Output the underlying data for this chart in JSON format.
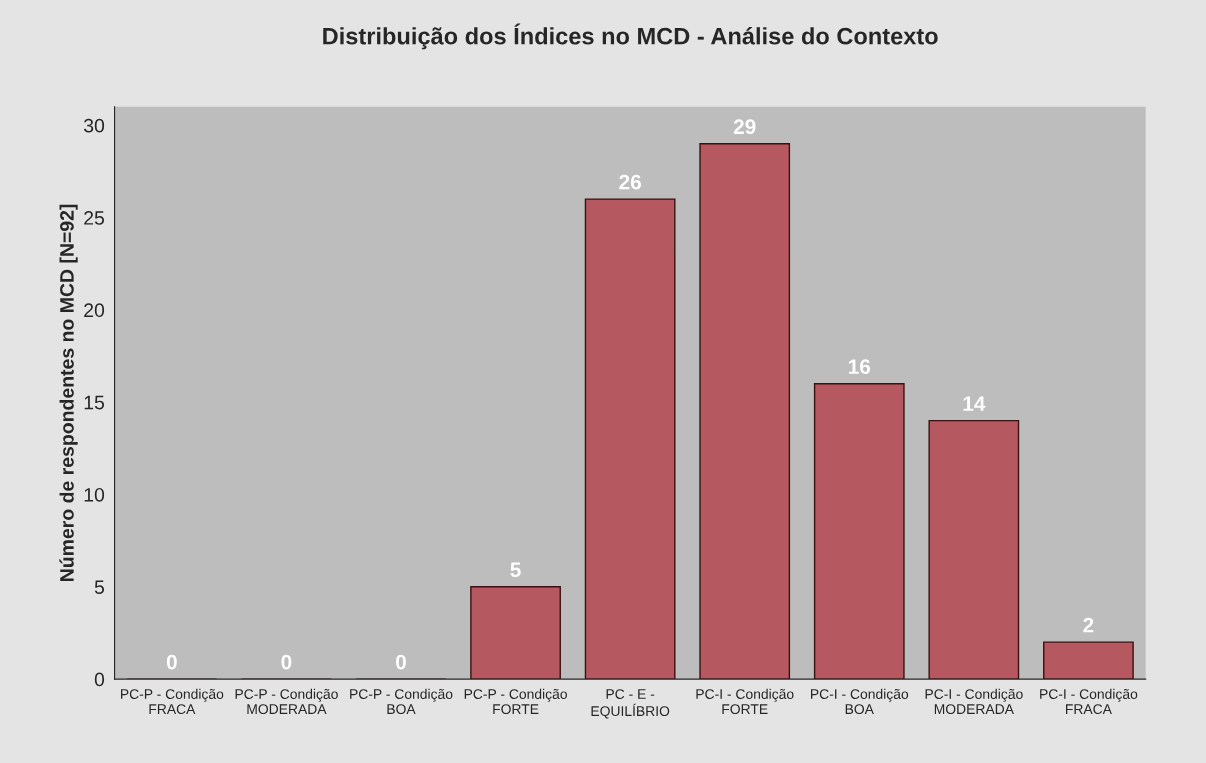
{
  "chart_data": {
    "type": "bar",
    "title": "Distribuição dos Índices no MCD - Análise do Contexto",
    "ylabel": "Número de respondentes no MCD [N=92]",
    "categories": [
      "PC-P - Condição\nFRACA",
      "PC-P - Condição\nMODERADA",
      "PC-P - Condição\nBOA",
      "PC-P - Condição\nFORTE",
      "PC - E -\nEQUILÍBRIO",
      "PC-I - Condição\nFORTE",
      "PC-I - Condição\nBOA",
      "PC-I - Condição\nMODERADA",
      "PC-I - Condição\nFRACA"
    ],
    "values": [
      0,
      0,
      0,
      5,
      26,
      29,
      16,
      14,
      2
    ],
    "color": "#b5585f",
    "ylim": [
      0,
      31
    ],
    "yticks": [
      0,
      5,
      10,
      15,
      20,
      25,
      30
    ],
    "data_labels": true,
    "grid": false,
    "legend": false
  }
}
